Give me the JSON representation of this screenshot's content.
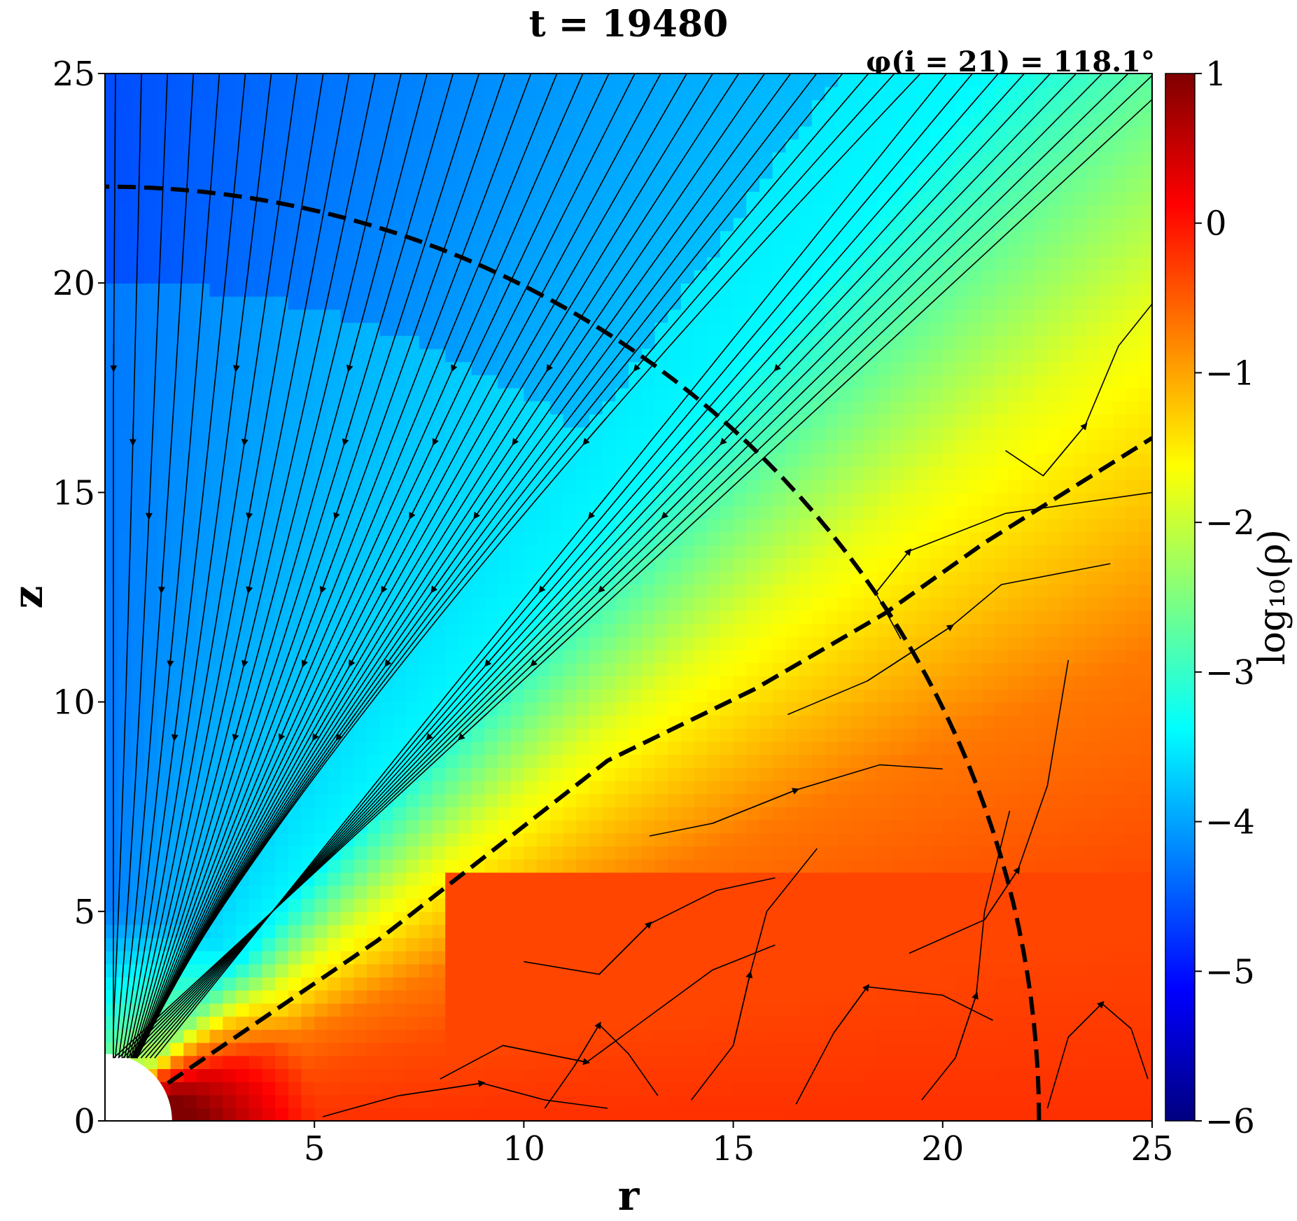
{
  "chart_data": {
    "type": "heatmap",
    "title": "t = 19480",
    "subtitle": "φ(i = 21) = 118.1°",
    "xlabel": "r",
    "ylabel": "z",
    "xlim": [
      0,
      25
    ],
    "ylim": [
      0,
      25
    ],
    "xticks": [
      "5",
      "10",
      "15",
      "20",
      "25"
    ],
    "xtick_values": [
      5,
      10,
      15,
      20,
      25
    ],
    "yticks": [
      "0",
      "5",
      "10",
      "15",
      "20",
      "25"
    ],
    "ytick_values": [
      0,
      5,
      10,
      15,
      20,
      25
    ],
    "colorbar": {
      "label": "log₁₀(ρ)",
      "range": [
        -6,
        1
      ],
      "ticks": [
        "1",
        "0",
        "−1",
        "−2",
        "−3",
        "−4",
        "−5",
        "−6"
      ],
      "tick_values": [
        1,
        0,
        -1,
        -2,
        -3,
        -4,
        -5,
        -6
      ],
      "colormap": "jet"
    },
    "field_description": "log10 density: low (~-4) in polar funnel near z axis, high (~0) in equatorial disk, transition along roughly 35 degree wedge",
    "inner_boundary_radius": 1.6,
    "dashed_lines": [
      {
        "kind": "arc",
        "radius": 22.3,
        "from_deg": 0,
        "to_deg": 90
      },
      {
        "kind": "line",
        "points": [
          [
            1.5,
            0.9
          ],
          [
            6.5,
            4.3
          ],
          [
            12.0,
            8.6
          ],
          [
            15.5,
            10.3
          ],
          [
            18.6,
            12.1
          ],
          [
            21.0,
            13.8
          ],
          [
            25.0,
            16.3
          ]
        ]
      }
    ],
    "streamlines": "velocity field streamlines with arrowheads: inflow toward origin in the funnel, turbulent circulation inside the disk"
  }
}
